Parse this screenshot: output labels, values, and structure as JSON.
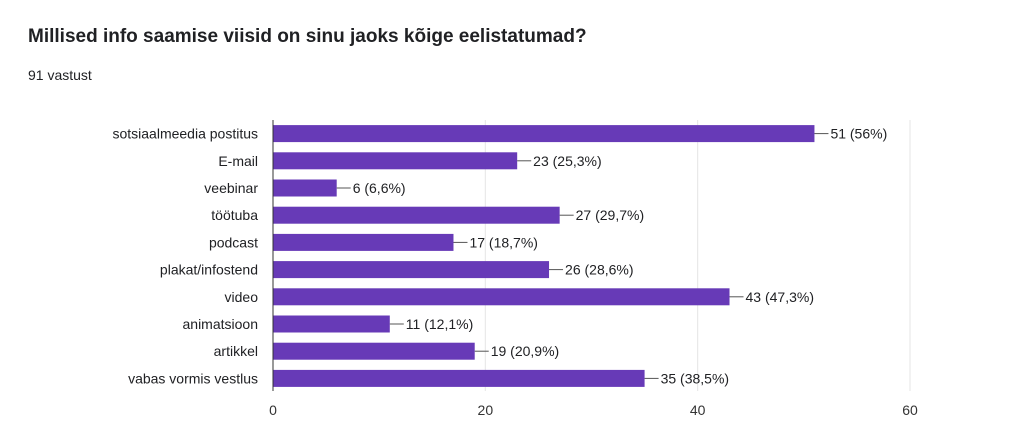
{
  "question": {
    "title": "Millised info saamise viisid on sinu jaoks kõige eelistatumad?",
    "response_count": "91 vastust"
  },
  "colors": {
    "bar": "#673ab7",
    "grid": "#e5e5e5",
    "axis": "#333333",
    "text": "#202124"
  },
  "chart_data": {
    "type": "bar",
    "orientation": "horizontal",
    "title": "",
    "xlabel": "",
    "ylabel": "",
    "categories": [
      "sotsiaalmeedia postitus",
      "E-mail",
      "veebinar",
      "töötuba",
      "podcast",
      "plakat/infostend",
      "video",
      "animatsioon",
      "artikkel",
      "vabas vormis vestlus"
    ],
    "values": [
      51,
      23,
      6,
      27,
      17,
      26,
      43,
      11,
      19,
      35
    ],
    "data_labels": [
      "51 (56%)",
      "23 (25,3%)",
      "6 (6,6%)",
      "27 (29,7%)",
      "17 (18,7%)",
      "26 (28,6%)",
      "43 (47,3%)",
      "11 (12,1%)",
      "19 (20,9%)",
      "35 (38,5%)"
    ],
    "xlim": [
      0,
      60
    ],
    "ticks": [
      0,
      20,
      40,
      60
    ],
    "tick_labels": [
      "0",
      "20",
      "40",
      "60"
    ],
    "grid": true
  }
}
